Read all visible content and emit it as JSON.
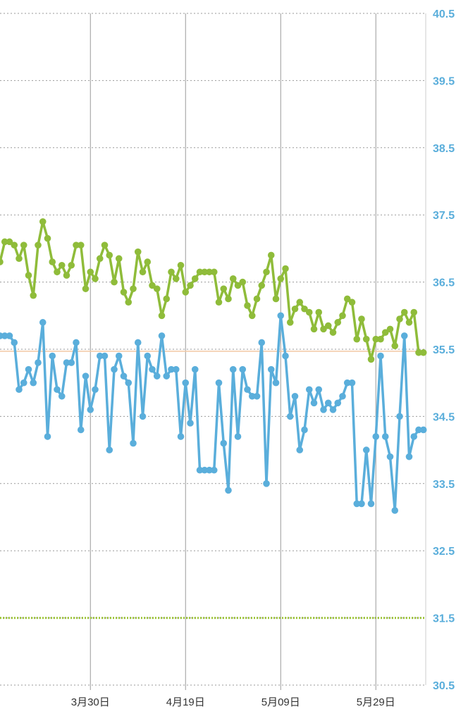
{
  "chart_data": {
    "type": "line",
    "title": "",
    "xlabel": "",
    "ylabel": "",
    "ylim": [
      30.5,
      40.5
    ],
    "y_ticks": [
      {
        "value": 40.5,
        "label": "40.5"
      },
      {
        "value": 39.5,
        "label": "39.5"
      },
      {
        "value": 38.5,
        "label": "38.5"
      },
      {
        "value": 37.5,
        "label": "37.5"
      },
      {
        "value": 36.5,
        "label": "36.5"
      },
      {
        "value": 35.5,
        "label": "35.5"
      },
      {
        "value": 34.5,
        "label": "34.5"
      },
      {
        "value": 33.5,
        "label": "33.5"
      },
      {
        "value": 32.5,
        "label": "32.5"
      },
      {
        "value": 31.5,
        "label": "31.5"
      },
      {
        "value": 30.5,
        "label": "30.5"
      }
    ],
    "y_axis_side": "right",
    "grid": "horizontal dotted, vertical solid at labeled dates",
    "x_tick_labels": [
      "3月30日",
      "4月19日",
      "5月09日",
      "5月29日"
    ],
    "x_tick_index": [
      19,
      39,
      59,
      79
    ],
    "x_count": 90,
    "reference_lines": [
      {
        "value": 35.47,
        "color": "#f2c8a4",
        "style": "solid"
      },
      {
        "value": 31.5,
        "color": "#9fc53c",
        "style": "dotted"
      }
    ],
    "colors": {
      "green": "#8fbc3a",
      "blue": "#5aaedb",
      "grid": "#9a9a9a",
      "axis_label": "#5aaedb"
    },
    "series": [
      {
        "color": "#8fbc3a",
        "values": [
          36.8,
          37.1,
          37.1,
          37.05,
          36.85,
          37.05,
          36.6,
          36.3,
          37.05,
          37.4,
          37.15,
          36.8,
          36.65,
          36.75,
          36.6,
          36.75,
          37.05,
          37.05,
          36.4,
          36.65,
          36.55,
          36.85,
          37.05,
          36.9,
          36.5,
          36.85,
          36.35,
          36.2,
          36.4,
          36.95,
          36.65,
          36.8,
          36.45,
          36.4,
          36.0,
          36.25,
          36.65,
          36.55,
          36.75,
          36.35,
          36.45,
          36.55,
          36.65,
          36.65,
          36.65,
          36.65,
          36.2,
          36.4,
          36.25,
          36.55,
          36.45,
          36.5,
          36.15,
          36.0,
          36.25,
          36.45,
          36.65,
          36.9,
          36.25,
          36.55,
          36.7,
          35.9,
          36.1,
          36.2,
          36.1,
          36.05,
          35.8,
          36.05,
          35.8,
          35.85,
          35.75,
          35.9,
          36.0,
          36.25,
          36.2,
          35.65,
          35.95,
          35.65,
          35.35,
          35.65,
          35.65,
          35.75,
          35.8,
          35.55,
          35.95,
          36.05,
          35.9,
          36.05,
          35.45,
          35.45
        ]
      },
      {
        "color": "#5aaedb",
        "values": [
          35.7,
          35.7,
          35.7,
          35.6,
          34.9,
          35.0,
          35.2,
          35.0,
          35.3,
          35.9,
          34.2,
          35.4,
          34.9,
          34.8,
          35.3,
          35.3,
          35.6,
          34.3,
          35.1,
          34.6,
          34.9,
          35.4,
          35.4,
          34.0,
          35.2,
          35.4,
          35.1,
          35.0,
          34.1,
          35.6,
          34.5,
          35.4,
          35.2,
          35.1,
          35.7,
          35.1,
          35.2,
          35.2,
          34.2,
          35.0,
          34.4,
          35.2,
          33.7,
          33.7,
          33.7,
          33.7,
          35.0,
          34.1,
          33.4,
          35.2,
          34.2,
          35.2,
          34.9,
          34.8,
          34.8,
          35.6,
          33.5,
          35.2,
          35.0,
          36.0,
          35.4,
          34.5,
          34.8,
          34.0,
          34.3,
          34.9,
          34.7,
          34.9,
          34.6,
          34.7,
          34.6,
          34.7,
          34.8,
          35.0,
          35.0,
          33.2,
          33.2,
          34.0,
          33.2,
          34.2,
          35.4,
          34.2,
          33.9,
          33.1,
          34.5,
          35.7,
          33.9,
          34.2,
          34.3,
          34.3
        ]
      }
    ]
  }
}
